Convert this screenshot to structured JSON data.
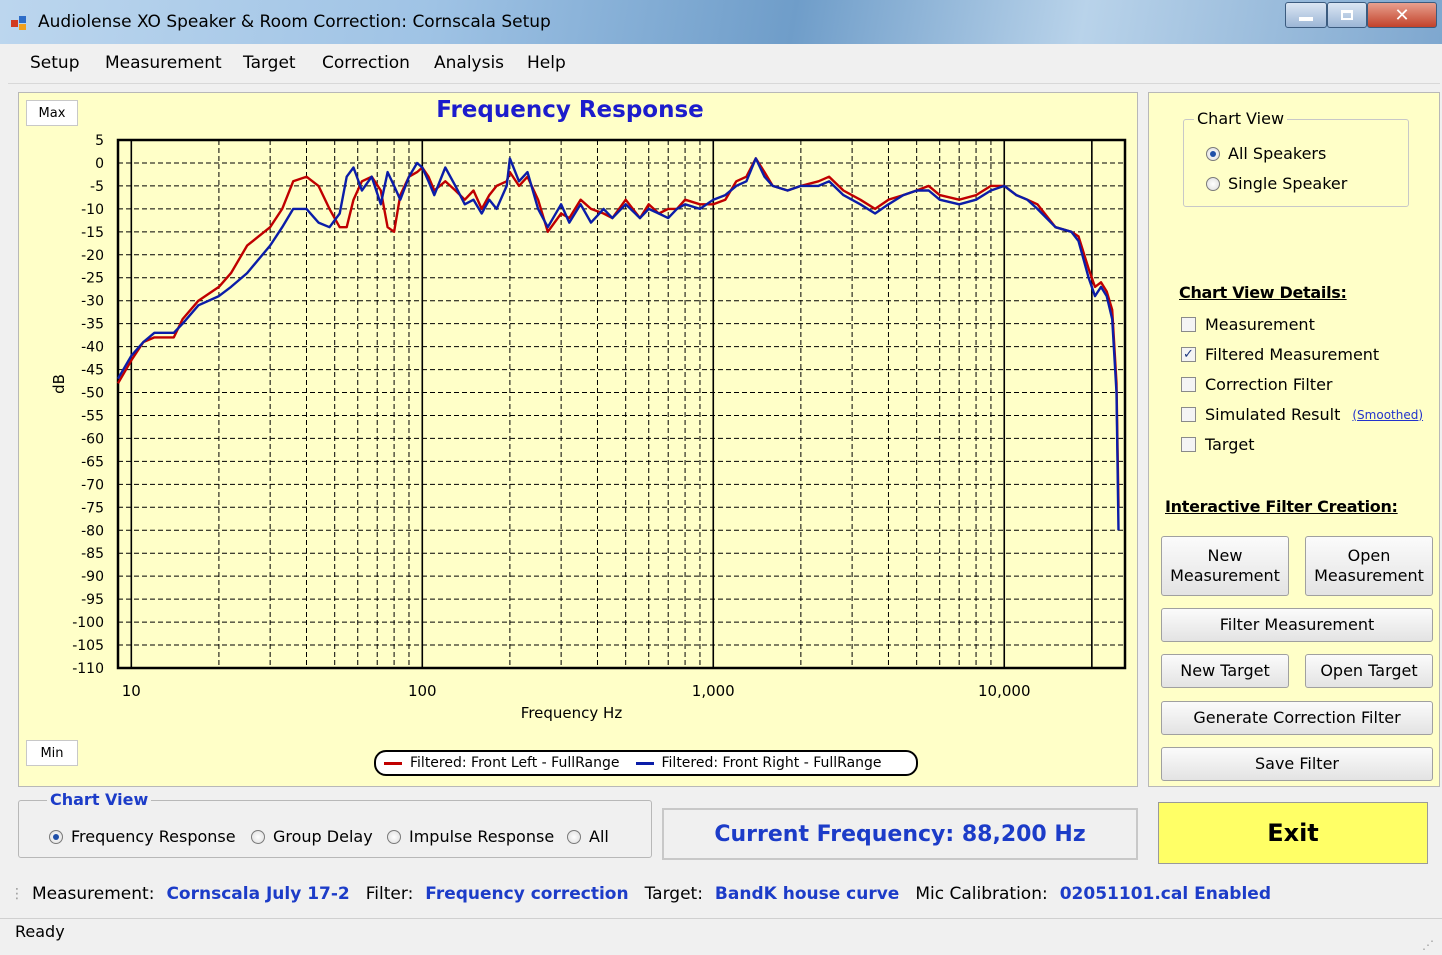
{
  "window": {
    "title": "Audiolense XO Speaker & Room Correction: Cornscala Setup"
  },
  "menu": [
    "Setup",
    "Measurement",
    "Target",
    "Correction",
    "Analysis",
    "Help"
  ],
  "chart_buttons": {
    "max": "Max",
    "min": "Min"
  },
  "chart_data": {
    "type": "line",
    "title": "Frequency Response",
    "xlabel": "Frequency Hz",
    "ylabel": "dB",
    "xscale": "log",
    "xlim": [
      9,
      26000
    ],
    "ylim": [
      -110,
      5
    ],
    "xticks": [
      10,
      100,
      1000,
      10000
    ],
    "xtick_labels": [
      "10",
      "100",
      "1,000",
      "10,000"
    ],
    "yticks": [
      5,
      0,
      -5,
      -10,
      -15,
      -20,
      -25,
      -30,
      -35,
      -40,
      -45,
      -50,
      -55,
      -60,
      -65,
      -70,
      -75,
      -80,
      -85,
      -90,
      -95,
      -100,
      -105,
      -110
    ],
    "grid": true,
    "legend_position": "bottom",
    "series": [
      {
        "name": "Filtered: Front Left - FullRange",
        "color": "#c00000",
        "points": [
          [
            9,
            -48
          ],
          [
            10,
            -43
          ],
          [
            11,
            -39
          ],
          [
            12,
            -38
          ],
          [
            14,
            -38
          ],
          [
            15,
            -34
          ],
          [
            17,
            -30
          ],
          [
            20,
            -27
          ],
          [
            22,
            -24
          ],
          [
            25,
            -18
          ],
          [
            30,
            -14
          ],
          [
            33,
            -10
          ],
          [
            36,
            -4
          ],
          [
            40,
            -3
          ],
          [
            44,
            -5
          ],
          [
            48,
            -10
          ],
          [
            52,
            -14
          ],
          [
            55,
            -14
          ],
          [
            58,
            -8
          ],
          [
            62,
            -4
          ],
          [
            67,
            -3
          ],
          [
            72,
            -6
          ],
          [
            76,
            -14
          ],
          [
            80,
            -15
          ],
          [
            84,
            -7
          ],
          [
            90,
            -3
          ],
          [
            96,
            -2
          ],
          [
            100,
            -1
          ],
          [
            105,
            -3
          ],
          [
            110,
            -6
          ],
          [
            120,
            -4
          ],
          [
            130,
            -6
          ],
          [
            140,
            -8
          ],
          [
            150,
            -6
          ],
          [
            160,
            -10
          ],
          [
            170,
            -7
          ],
          [
            180,
            -5
          ],
          [
            195,
            -4
          ],
          [
            200,
            -2
          ],
          [
            215,
            -5
          ],
          [
            230,
            -3
          ],
          [
            250,
            -8
          ],
          [
            270,
            -15
          ],
          [
            300,
            -11
          ],
          [
            320,
            -12
          ],
          [
            350,
            -8
          ],
          [
            380,
            -10
          ],
          [
            420,
            -11
          ],
          [
            450,
            -12
          ],
          [
            500,
            -8
          ],
          [
            560,
            -12
          ],
          [
            600,
            -9
          ],
          [
            650,
            -11
          ],
          [
            700,
            -10
          ],
          [
            750,
            -10
          ],
          [
            800,
            -8
          ],
          [
            900,
            -9
          ],
          [
            1000,
            -9
          ],
          [
            1100,
            -8
          ],
          [
            1200,
            -4
          ],
          [
            1300,
            -3
          ],
          [
            1400,
            1
          ],
          [
            1500,
            -2
          ],
          [
            1600,
            -5
          ],
          [
            1800,
            -6
          ],
          [
            2000,
            -5
          ],
          [
            2300,
            -4
          ],
          [
            2500,
            -3
          ],
          [
            2800,
            -6
          ],
          [
            3200,
            -8
          ],
          [
            3600,
            -10
          ],
          [
            4000,
            -8
          ],
          [
            4500,
            -7
          ],
          [
            5000,
            -6
          ],
          [
            5500,
            -5
          ],
          [
            6000,
            -7
          ],
          [
            7000,
            -8
          ],
          [
            8000,
            -7
          ],
          [
            9000,
            -5
          ],
          [
            10000,
            -5
          ],
          [
            11000,
            -7
          ],
          [
            12000,
            -8
          ],
          [
            13000,
            -9
          ],
          [
            15000,
            -14
          ],
          [
            17000,
            -15
          ],
          [
            18000,
            -16
          ],
          [
            19500,
            -23
          ],
          [
            20500,
            -27
          ],
          [
            21500,
            -26
          ],
          [
            22500,
            -28
          ],
          [
            23500,
            -32
          ],
          [
            24300,
            -48
          ],
          [
            24700,
            -75
          ]
        ]
      },
      {
        "name": "Filtered: Front Right - FullRange",
        "color": "#0b1da8",
        "points": [
          [
            9,
            -47
          ],
          [
            10,
            -42
          ],
          [
            11,
            -39
          ],
          [
            12,
            -37
          ],
          [
            14,
            -37
          ],
          [
            15,
            -35
          ],
          [
            17,
            -31
          ],
          [
            20,
            -29
          ],
          [
            22,
            -27
          ],
          [
            25,
            -24
          ],
          [
            30,
            -18
          ],
          [
            33,
            -14
          ],
          [
            36,
            -10
          ],
          [
            40,
            -10
          ],
          [
            44,
            -13
          ],
          [
            48,
            -14
          ],
          [
            52,
            -11
          ],
          [
            55,
            -3
          ],
          [
            58,
            -1
          ],
          [
            62,
            -6
          ],
          [
            67,
            -3
          ],
          [
            72,
            -9
          ],
          [
            76,
            -2
          ],
          [
            80,
            -5
          ],
          [
            84,
            -8
          ],
          [
            90,
            -3
          ],
          [
            96,
            0
          ],
          [
            100,
            -1
          ],
          [
            105,
            -4
          ],
          [
            110,
            -7
          ],
          [
            120,
            -1
          ],
          [
            130,
            -5
          ],
          [
            140,
            -9
          ],
          [
            150,
            -8
          ],
          [
            160,
            -11
          ],
          [
            170,
            -8
          ],
          [
            180,
            -10
          ],
          [
            195,
            -5
          ],
          [
            200,
            1
          ],
          [
            215,
            -4
          ],
          [
            230,
            -2
          ],
          [
            250,
            -10
          ],
          [
            270,
            -14
          ],
          [
            300,
            -9
          ],
          [
            320,
            -13
          ],
          [
            350,
            -9
          ],
          [
            380,
            -13
          ],
          [
            420,
            -10
          ],
          [
            450,
            -12
          ],
          [
            500,
            -9
          ],
          [
            560,
            -12
          ],
          [
            600,
            -10
          ],
          [
            650,
            -11
          ],
          [
            700,
            -12
          ],
          [
            750,
            -10
          ],
          [
            800,
            -9
          ],
          [
            900,
            -10
          ],
          [
            1000,
            -8
          ],
          [
            1100,
            -7
          ],
          [
            1200,
            -5
          ],
          [
            1300,
            -4
          ],
          [
            1400,
            1
          ],
          [
            1500,
            -3
          ],
          [
            1600,
            -5
          ],
          [
            1800,
            -6
          ],
          [
            2000,
            -5
          ],
          [
            2300,
            -5
          ],
          [
            2500,
            -4
          ],
          [
            2800,
            -7
          ],
          [
            3200,
            -9
          ],
          [
            3600,
            -11
          ],
          [
            4000,
            -9
          ],
          [
            4500,
            -7
          ],
          [
            5000,
            -6
          ],
          [
            5500,
            -6
          ],
          [
            6000,
            -8
          ],
          [
            7000,
            -9
          ],
          [
            8000,
            -8
          ],
          [
            9000,
            -6
          ],
          [
            10000,
            -5
          ],
          [
            11000,
            -7
          ],
          [
            12000,
            -8
          ],
          [
            13000,
            -10
          ],
          [
            15000,
            -14
          ],
          [
            17000,
            -15
          ],
          [
            18000,
            -17
          ],
          [
            19500,
            -25
          ],
          [
            20500,
            -29
          ],
          [
            21500,
            -27
          ],
          [
            22500,
            -29
          ],
          [
            23500,
            -34
          ],
          [
            24300,
            -50
          ],
          [
            24700,
            -80
          ]
        ]
      }
    ]
  },
  "right_panel": {
    "chart_view_title": "Chart View",
    "chart_view_options": [
      {
        "label": "All Speakers",
        "selected": true
      },
      {
        "label": "Single Speaker",
        "selected": false
      }
    ],
    "details_title": "Chart View Details:",
    "details": [
      {
        "label": "Measurement",
        "checked": false
      },
      {
        "label": "Filtered Measurement",
        "checked": true
      },
      {
        "label": "Correction Filter",
        "checked": false
      },
      {
        "label": "Simulated Result",
        "checked": false
      },
      {
        "label": "Target",
        "checked": false
      }
    ],
    "smoothed_link": "(Smoothed)",
    "interactive_title": "Interactive Filter Creation:",
    "buttons": {
      "new_measurement_1": "New",
      "new_measurement_2": "Measurement",
      "open_measurement_1": "Open",
      "open_measurement_2": "Measurement",
      "filter_measurement": "Filter Measurement",
      "new_target": "New Target",
      "open_target": "Open Target",
      "generate_filter": "Generate Correction Filter",
      "save_filter": "Save Filter"
    }
  },
  "bottom": {
    "chart_view_title": "Chart View",
    "options": [
      {
        "label": "Frequency Response",
        "selected": true
      },
      {
        "label": "Group Delay",
        "selected": false
      },
      {
        "label": "Impulse Response",
        "selected": false
      },
      {
        "label": "All",
        "selected": false
      }
    ],
    "current_frequency": "Current Frequency: 88,200 Hz",
    "exit": "Exit"
  },
  "info": {
    "measurement_label": "Measurement:",
    "measurement_value": "Cornscala July 17-2",
    "filter_label": "Filter:",
    "filter_value": "Frequency correction",
    "target_label": "Target:",
    "target_value": "BandK house curve",
    "mic_label": "Mic Calibration:",
    "mic_value": "02051101.cal Enabled"
  },
  "status": "Ready",
  "colors": {
    "chart_bg": "#ffffc8",
    "accent_blue": "#1c3cc8",
    "exit_yellow": "#ffff66"
  }
}
